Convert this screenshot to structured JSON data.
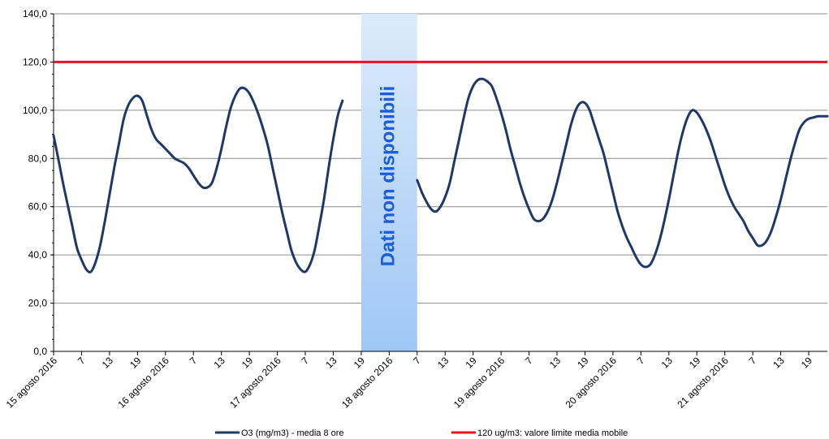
{
  "chart_data": {
    "type": "line",
    "title": "",
    "xlabel": "",
    "ylabel": "",
    "ylim": [
      0,
      140
    ],
    "y_ticks": [
      "0,0",
      "20,0",
      "40,0",
      "60,0",
      "80,0",
      "100,0",
      "120,0",
      "140,0"
    ],
    "x_range": [
      0,
      166
    ],
    "x_ticks": [
      {
        "x": 0,
        "label": "15 agosto 2016"
      },
      {
        "x": 6,
        "label": "7"
      },
      {
        "x": 12,
        "label": "13"
      },
      {
        "x": 18,
        "label": "19"
      },
      {
        "x": 24,
        "label": "16 agosto 2016"
      },
      {
        "x": 30,
        "label": "7"
      },
      {
        "x": 36,
        "label": "13"
      },
      {
        "x": 42,
        "label": "19"
      },
      {
        "x": 48,
        "label": "17 agosto 2016"
      },
      {
        "x": 54,
        "label": "7"
      },
      {
        "x": 60,
        "label": "13"
      },
      {
        "x": 66,
        "label": "19"
      },
      {
        "x": 72,
        "label": "18 agosto 2016"
      },
      {
        "x": 78,
        "label": "7"
      },
      {
        "x": 84,
        "label": "13"
      },
      {
        "x": 90,
        "label": "19"
      },
      {
        "x": 96,
        "label": "19 agosto 2016"
      },
      {
        "x": 102,
        "label": "7"
      },
      {
        "x": 108,
        "label": "13"
      },
      {
        "x": 114,
        "label": "19"
      },
      {
        "x": 120,
        "label": "20 agosto 2016"
      },
      {
        "x": 126,
        "label": "7"
      },
      {
        "x": 132,
        "label": "13"
      },
      {
        "x": 138,
        "label": "19"
      },
      {
        "x": 144,
        "label": "21 agosto 2016"
      },
      {
        "x": 150,
        "label": "7"
      },
      {
        "x": 156,
        "label": "13"
      },
      {
        "x": 162,
        "label": "19"
      }
    ],
    "grid": true,
    "legend_position": "bottom",
    "unavailable": {
      "x_start": 66,
      "x_end": 78,
      "label": "Dati non disponibili"
    },
    "series": [
      {
        "name": "O3 (mg/m3) - media 8 ore",
        "color": "#1f3864",
        "segments": [
          {
            "x_start": 0,
            "values": [
              89.5,
              80,
              70,
              61,
              52,
              43,
              38,
              34,
              33,
              37,
              44,
              54,
              65,
              76,
              86,
              96,
              102,
              105,
              106,
              104,
              98,
              92,
              88,
              86,
              84,
              82,
              80,
              79,
              78,
              76,
              73,
              70,
              68,
              68,
              70,
              76,
              84,
              93,
              101,
              106,
              109,
              109,
              107,
              103,
              98,
              92,
              85,
              76,
              67,
              58,
              50,
              42,
              37,
              34,
              33,
              36,
              42,
              52,
              63,
              76,
              88,
              98,
              104
            ]
          },
          {
            "x_start": 78,
            "values": [
              71,
              66,
              62,
              59,
              58,
              60,
              64,
              70,
              79,
              88,
              97,
              105,
              110,
              112.5,
              113,
              112,
              110,
              105,
              99,
              92,
              84,
              77,
              70,
              64,
              59,
              55,
              54,
              55,
              58,
              63,
              70,
              78,
              86,
              94,
              100,
              103,
              103,
              100,
              94,
              88,
              82,
              74,
              66,
              58,
              52,
              47,
              43,
              39,
              36,
              35,
              36,
              40,
              46,
              54,
              63,
              73,
              83,
              91,
              97,
              100,
              99,
              96,
              92,
              87,
              81,
              75,
              69,
              64,
              60,
              57,
              54,
              50,
              47,
              44,
              44,
              46,
              50,
              56,
              63,
              71,
              79,
              86,
              92,
              95,
              96.5,
              97,
              97.5,
              97.5,
              97.5
            ]
          }
        ]
      },
      {
        "name": "120 ug/m3: valore limite media mobile",
        "color": "#e8161b",
        "values": [
          120,
          120
        ]
      }
    ]
  }
}
